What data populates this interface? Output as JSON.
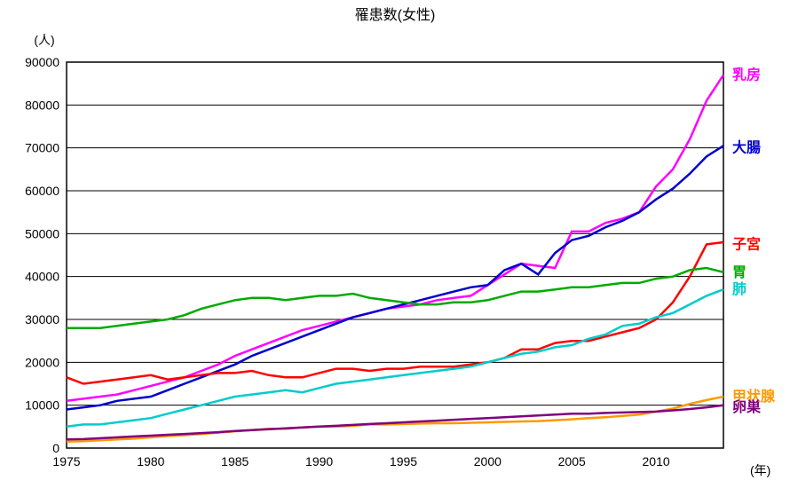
{
  "chart": {
    "title": "罹患数(女性)",
    "y_axis_label": "(人)",
    "x_axis_label": "(年)",
    "title_fontsize": 16,
    "axis_fontsize": 14,
    "label_fontsize": 16,
    "background_color": "#ffffff",
    "grid_color": "#000000",
    "border_color": "#000000",
    "x": {
      "min": 1975,
      "max": 2014,
      "tick_step": 5,
      "ticks": [
        1975,
        1980,
        1985,
        1990,
        1995,
        2000,
        2005,
        2010
      ]
    },
    "y": {
      "min": 0,
      "max": 90000,
      "tick_step": 10000,
      "ticks": [
        0,
        10000,
        20000,
        30000,
        40000,
        50000,
        60000,
        70000,
        80000,
        90000
      ]
    },
    "years": [
      1975,
      1976,
      1977,
      1978,
      1979,
      1980,
      1981,
      1982,
      1983,
      1984,
      1985,
      1986,
      1987,
      1988,
      1989,
      1990,
      1991,
      1992,
      1993,
      1994,
      1995,
      1996,
      1997,
      1998,
      1999,
      2000,
      2001,
      2002,
      2003,
      2004,
      2005,
      2006,
      2007,
      2008,
      2009,
      2010,
      2011,
      2012,
      2013,
      2014
    ],
    "series": [
      {
        "name": "乳房",
        "label": "乳房",
        "color": "#ff00ff",
        "label_y": 87000,
        "values": [
          11000,
          11500,
          12000,
          12500,
          13500,
          14500,
          15500,
          16500,
          18000,
          19500,
          21500,
          23000,
          24500,
          26000,
          27500,
          28500,
          29500,
          30500,
          31500,
          32500,
          33000,
          33500,
          34500,
          35000,
          35500,
          38000,
          40500,
          43000,
          42500,
          42000,
          50500,
          50500,
          52500,
          53500,
          55000,
          61000,
          65000,
          72000,
          81000,
          87000
        ]
      },
      {
        "name": "大腸",
        "label": "大腸",
        "color": "#0000cc",
        "label_y": 70000,
        "values": [
          9000,
          9500,
          10000,
          11000,
          11500,
          12000,
          13500,
          15000,
          16500,
          18000,
          19500,
          21500,
          23000,
          24500,
          26000,
          27500,
          29000,
          30500,
          31500,
          32500,
          33500,
          34500,
          35500,
          36500,
          37500,
          38000,
          41500,
          43000,
          40500,
          45500,
          48500,
          49500,
          51500,
          53000,
          55000,
          58000,
          60500,
          64000,
          68000,
          70500
        ]
      },
      {
        "name": "子宮",
        "label": "子宮",
        "color": "#ff0000",
        "label_y": 47500,
        "values": [
          16500,
          15000,
          15500,
          16000,
          16500,
          17000,
          16000,
          16500,
          17000,
          17500,
          17500,
          18000,
          17000,
          16500,
          16500,
          17500,
          18500,
          18500,
          18000,
          18500,
          18500,
          19000,
          19000,
          19000,
          19500,
          20000,
          21000,
          23000,
          23000,
          24500,
          25000,
          25000,
          26000,
          27000,
          28000,
          30000,
          34000,
          40000,
          47500,
          48000
        ]
      },
      {
        "name": "胃",
        "label": "胃",
        "color": "#00aa00",
        "label_y": 41000,
        "values": [
          28000,
          28000,
          28000,
          28500,
          29000,
          29500,
          30000,
          31000,
          32500,
          33500,
          34500,
          35000,
          35000,
          34500,
          35000,
          35500,
          35500,
          36000,
          35000,
          34500,
          34000,
          33500,
          33500,
          34000,
          34000,
          34500,
          35500,
          36500,
          36500,
          37000,
          37500,
          37500,
          38000,
          38500,
          38500,
          39500,
          40000,
          41500,
          42000,
          41000
        ]
      },
      {
        "name": "肺",
        "label": "肺",
        "color": "#00cccc",
        "label_y": 37000,
        "values": [
          5000,
          5500,
          5500,
          6000,
          6500,
          7000,
          8000,
          9000,
          10000,
          11000,
          12000,
          12500,
          13000,
          13500,
          13000,
          14000,
          15000,
          15500,
          16000,
          16500,
          17000,
          17500,
          18000,
          18500,
          19000,
          20000,
          21000,
          22000,
          22500,
          23500,
          24000,
          25500,
          26500,
          28500,
          29000,
          30500,
          31500,
          33500,
          35500,
          37000
        ]
      },
      {
        "name": "甲状腺",
        "label": "甲状腺",
        "color": "#ff9900",
        "label_y": 12000,
        "values": [
          1500,
          1600,
          1800,
          2000,
          2200,
          2500,
          2800,
          3000,
          3300,
          3600,
          3900,
          4200,
          4500,
          4500,
          4800,
          5000,
          5000,
          5200,
          5500,
          5500,
          5600,
          5700,
          5800,
          5800,
          5900,
          6000,
          6100,
          6200,
          6300,
          6500,
          6700,
          7000,
          7200,
          7500,
          7800,
          8500,
          9200,
          10300,
          11200,
          12000
        ]
      },
      {
        "name": "卵巣",
        "label": "卵巣",
        "color": "#800080",
        "label_y": 9500,
        "values": [
          2000,
          2100,
          2300,
          2500,
          2700,
          2900,
          3100,
          3300,
          3500,
          3700,
          4000,
          4200,
          4400,
          4600,
          4800,
          5000,
          5200,
          5400,
          5600,
          5800,
          6000,
          6200,
          6400,
          6600,
          6800,
          7000,
          7200,
          7400,
          7600,
          7800,
          8000,
          8000,
          8200,
          8300,
          8400,
          8500,
          8800,
          9100,
          9500,
          10000
        ]
      }
    ]
  }
}
